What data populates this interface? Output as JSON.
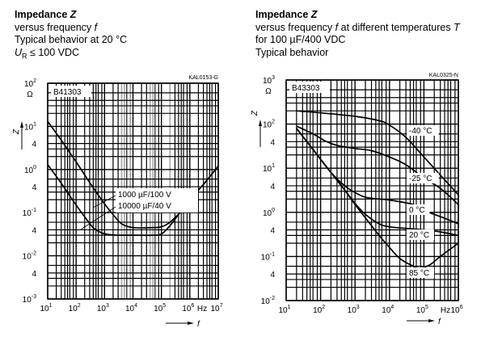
{
  "chart_data": [
    {
      "type": "line",
      "title": "Impedance Z",
      "subtitle_lines": [
        "versus frequency f",
        "Typical behavior at 20 °C",
        "U_R ≤ 100 VDC"
      ],
      "code": "KAL0153-G",
      "series_label": "B41303",
      "xlabel": "f",
      "xunit": "Hz",
      "ylabel": "Z",
      "yunit": "Ω",
      "xscale": "log",
      "yscale": "log",
      "xlim": [
        10,
        10000000
      ],
      "ylim": [
        0.001,
        100
      ],
      "grid": true,
      "x_ticks": [
        {
          "exp": "1"
        },
        {
          "exp": "2"
        },
        {
          "exp": "3"
        },
        {
          "exp": "4"
        },
        {
          "exp": "5"
        },
        {
          "exp": "6"
        },
        {
          "exp": "7"
        }
      ],
      "y_ticks": [
        {
          "base": "10",
          "exp": "2"
        },
        {
          "base": "10",
          "exp": "1"
        },
        {
          "base": "4"
        },
        {
          "base": "10",
          "exp": "0"
        },
        {
          "base": "4"
        },
        {
          "base": "10",
          "exp": "-1"
        },
        {
          "base": "4"
        },
        {
          "base": "10",
          "exp": "-2"
        },
        {
          "base": "4"
        },
        {
          "base": "10",
          "exp": "-3"
        }
      ],
      "series": [
        {
          "name": "1000 µF/100 V",
          "x": [
            10,
            30,
            100,
            300,
            1000,
            2000,
            4000,
            10000,
            50000,
            100000,
            200000,
            500000,
            1000000,
            3000000,
            10000000
          ],
          "y": [
            13,
            4.8,
            1.5,
            0.5,
            0.16,
            0.09,
            0.055,
            0.045,
            0.045,
            0.047,
            0.06,
            0.11,
            0.2,
            0.45,
            1.2
          ]
        },
        {
          "name": "10000 µF/40 V",
          "x": [
            10,
            30,
            100,
            200,
            400,
            800,
            1500,
            3000,
            10000,
            50000,
            100000,
            200000,
            500000,
            1000000,
            3000000,
            10000000
          ],
          "y": [
            1.3,
            0.48,
            0.15,
            0.08,
            0.045,
            0.034,
            0.031,
            0.03,
            0.03,
            0.03,
            0.032,
            0.05,
            0.11,
            0.2,
            0.45,
            1.2
          ]
        }
      ],
      "annotations": [
        "1000 µF/100 V",
        "10000 µF/40 V"
      ]
    },
    {
      "type": "line",
      "title": "Impedance Z",
      "subtitle_lines": [
        "versus frequency f at different temperatures T",
        "for 100 µF/400 VDC",
        "Typical behavior"
      ],
      "code": "KAL0325-N",
      "series_label": "B43303",
      "xlabel": "f",
      "xunit": "Hz",
      "ylabel": "Z",
      "yunit": "Ω",
      "xscale": "log",
      "yscale": "log",
      "xlim": [
        10,
        1000000
      ],
      "ylim": [
        0.01,
        1000
      ],
      "grid": true,
      "x_ticks": [
        {
          "exp": "1"
        },
        {
          "exp": "2"
        },
        {
          "exp": "3"
        },
        {
          "exp": "4"
        },
        {
          "exp": "5"
        },
        {
          "exp": "6"
        }
      ],
      "y_ticks": [
        {
          "base": "10",
          "exp": "3"
        },
        {
          "base": "10",
          "exp": "2"
        },
        {
          "base": "4"
        },
        {
          "base": "10",
          "exp": "1"
        },
        {
          "base": "4"
        },
        {
          "base": "10",
          "exp": "0"
        },
        {
          "base": "4"
        },
        {
          "base": "10",
          "exp": "-1"
        },
        {
          "base": "4"
        },
        {
          "base": "10",
          "exp": "-2"
        }
      ],
      "series": [
        {
          "name": "-40 °C",
          "x": [
            20,
            100,
            1000,
            5000,
            10000,
            30000,
            100000,
            300000,
            1000000
          ],
          "y": [
            200,
            180,
            150,
            120,
            95,
            50,
            18,
            7,
            2.5
          ]
        },
        {
          "name": "-25 °C",
          "x": [
            20,
            60,
            150,
            300,
            1000,
            3000,
            10000,
            30000,
            100000,
            300000,
            1000000
          ],
          "y": [
            90,
            60,
            40,
            33,
            28,
            25,
            18,
            12,
            6,
            3.5,
            1.5
          ]
        },
        {
          "name": "0 °C",
          "x": [
            20,
            50,
            100,
            200,
            500,
            1000,
            2000,
            5000,
            10000,
            50000,
            100000,
            300000,
            1000000
          ],
          "y": [
            80,
            32,
            16,
            8,
            4,
            2.8,
            2.2,
            2,
            1.9,
            1.5,
            1.1,
            0.8,
            0.55
          ]
        },
        {
          "name": "20 °C",
          "x": [
            20,
            50,
            100,
            200,
            500,
            1000,
            2000,
            5000,
            10000,
            50000,
            100000,
            300000,
            1000000
          ],
          "y": [
            80,
            32,
            16,
            8,
            3.2,
            1.6,
            0.9,
            0.55,
            0.47,
            0.42,
            0.4,
            0.36,
            0.3
          ]
        },
        {
          "name": "85 °C",
          "x": [
            20,
            50,
            100,
            200,
            500,
            1000,
            2000,
            5000,
            10000,
            20000,
            50000,
            80000,
            150000,
            300000,
            1000000
          ],
          "y": [
            80,
            32,
            16,
            8,
            3.2,
            1.5,
            0.75,
            0.3,
            0.16,
            0.09,
            0.06,
            0.055,
            0.065,
            0.1,
            0.2
          ]
        }
      ],
      "annotations": [
        "-40 °C",
        "-25 °C",
        "0 °C",
        "20 °C",
        "85 °C"
      ]
    }
  ]
}
